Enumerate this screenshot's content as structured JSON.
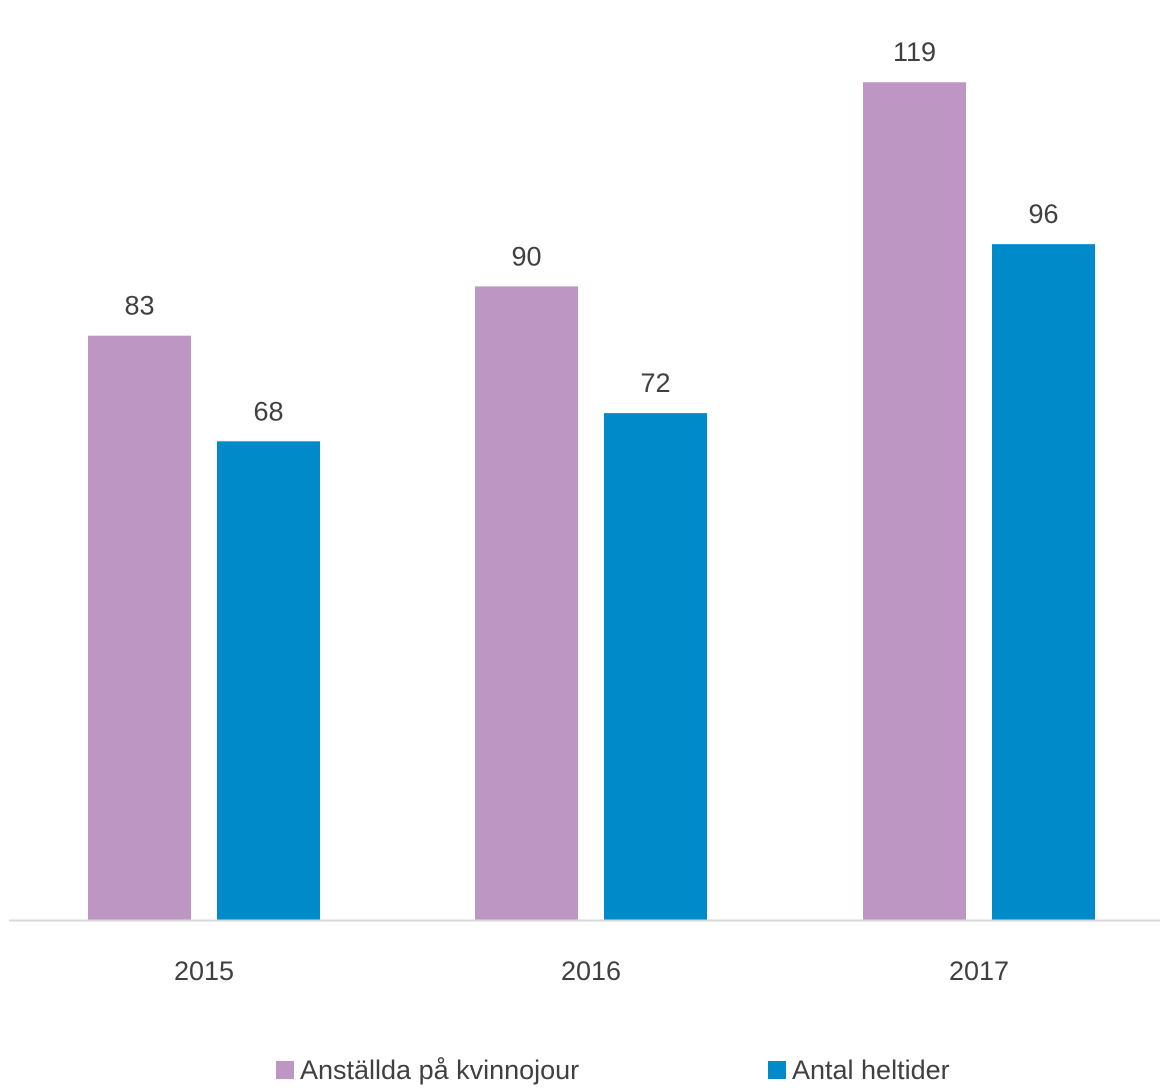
{
  "chart_data": {
    "type": "bar",
    "categories": [
      "2015",
      "2016",
      "2017"
    ],
    "series": [
      {
        "name": "Anställda på kvinnojour",
        "values": [
          83,
          90,
          119
        ],
        "color": "#BD96C3"
      },
      {
        "name": "Antal heltider",
        "values": [
          68,
          72,
          96
        ],
        "color": "#008ACA"
      }
    ],
    "title": "",
    "xlabel": "",
    "ylabel": "",
    "ylim": [
      0,
      125
    ],
    "grid": false,
    "data_labels": true,
    "legend_position": "bottom",
    "axis_color": "#D9D9D9",
    "label_color": "#404040"
  }
}
